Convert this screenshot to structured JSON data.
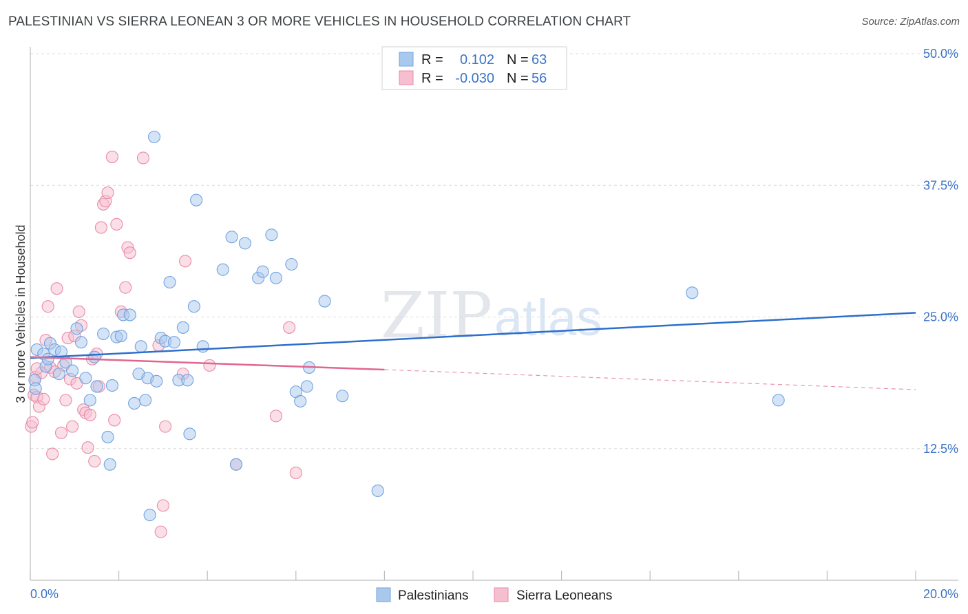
{
  "header": {
    "title": "PALESTINIAN VS SIERRA LEONEAN 3 OR MORE VEHICLES IN HOUSEHOLD CORRELATION CHART",
    "source": "Source: ZipAtlas.com"
  },
  "watermark": {
    "part1": "ZIP",
    "part2": "atlas"
  },
  "colors": {
    "blue": "#6fa3e0",
    "blue_fill": "#a9c8ee",
    "blue_line": "#2d6fcc",
    "pink": "#e98aa8",
    "pink_fill": "#f5bfd0",
    "pink_line": "#e06690"
  },
  "stats": {
    "r_label": "R =",
    "n_label": "N =",
    "series": [
      {
        "r": "0.102",
        "n": "63"
      },
      {
        "r": "-0.030",
        "n": "56"
      }
    ]
  },
  "chart_data": {
    "type": "scatter",
    "title": "PALESTINIAN VS SIERRA LEONEAN 3 OR MORE VEHICLES IN HOUSEHOLD CORRELATION CHART",
    "xlabel": "",
    "ylabel": "3 or more Vehicles in Household",
    "xlim": [
      0,
      20
    ],
    "ylim": [
      0,
      50
    ],
    "x_tick_labels": [
      "0.0%",
      "20.0%"
    ],
    "y_ticks": [
      12.5,
      25.0,
      37.5,
      50.0
    ],
    "y_tick_labels": [
      "12.5%",
      "25.0%",
      "37.5%",
      "50.0%"
    ],
    "legend": [
      "Palestinians",
      "Sierra Leoneans"
    ],
    "series": [
      {
        "name": "Palestinians",
        "trend": {
          "x": [
            0,
            20
          ],
          "y": [
            21.1,
            25.4
          ]
        },
        "points": [
          [
            0.1,
            19.0
          ],
          [
            0.12,
            18.2
          ],
          [
            0.15,
            21.9
          ],
          [
            0.3,
            21.5
          ],
          [
            0.35,
            20.3
          ],
          [
            0.4,
            21.0
          ],
          [
            0.45,
            22.5
          ],
          [
            0.55,
            21.9
          ],
          [
            0.65,
            19.6
          ],
          [
            0.7,
            21.7
          ],
          [
            0.8,
            20.7
          ],
          [
            0.95,
            19.9
          ],
          [
            1.05,
            23.9
          ],
          [
            1.15,
            22.6
          ],
          [
            1.25,
            19.2
          ],
          [
            1.35,
            17.1
          ],
          [
            1.45,
            21.2
          ],
          [
            1.5,
            18.4
          ],
          [
            1.65,
            23.4
          ],
          [
            1.75,
            13.6
          ],
          [
            1.8,
            11.0
          ],
          [
            1.85,
            18.5
          ],
          [
            1.95,
            23.1
          ],
          [
            2.05,
            23.2
          ],
          [
            2.1,
            25.2
          ],
          [
            2.25,
            25.2
          ],
          [
            2.35,
            16.8
          ],
          [
            2.45,
            19.6
          ],
          [
            2.5,
            22.2
          ],
          [
            2.6,
            17.1
          ],
          [
            2.65,
            19.2
          ],
          [
            2.7,
            6.2
          ],
          [
            2.8,
            42.1
          ],
          [
            2.85,
            18.9
          ],
          [
            2.95,
            23.0
          ],
          [
            3.05,
            22.7
          ],
          [
            3.15,
            28.3
          ],
          [
            3.25,
            22.6
          ],
          [
            3.35,
            19.0
          ],
          [
            3.45,
            24.0
          ],
          [
            3.55,
            19.0
          ],
          [
            3.6,
            13.9
          ],
          [
            3.7,
            26.0
          ],
          [
            3.75,
            36.1
          ],
          [
            3.9,
            22.2
          ],
          [
            4.35,
            29.5
          ],
          [
            4.55,
            32.6
          ],
          [
            4.65,
            11.0
          ],
          [
            4.85,
            32.0
          ],
          [
            5.15,
            28.7
          ],
          [
            5.25,
            29.3
          ],
          [
            5.45,
            32.8
          ],
          [
            5.55,
            28.7
          ],
          [
            5.9,
            30.0
          ],
          [
            6.0,
            17.9
          ],
          [
            6.1,
            17.0
          ],
          [
            6.25,
            18.4
          ],
          [
            6.3,
            20.2
          ],
          [
            6.65,
            26.5
          ],
          [
            7.05,
            17.5
          ],
          [
            7.85,
            8.5
          ],
          [
            14.95,
            27.3
          ],
          [
            16.9,
            17.1
          ]
        ]
      },
      {
        "name": "Sierra Leoneans",
        "trend": {
          "x": [
            0,
            8
          ],
          "y": [
            21.2,
            20.0
          ]
        },
        "trend_dashed": {
          "x": [
            8,
            20
          ],
          "y": [
            20.0,
            18.1
          ]
        },
        "points": [
          [
            0.02,
            14.6
          ],
          [
            0.05,
            15.0
          ],
          [
            0.08,
            17.6
          ],
          [
            0.12,
            19.3
          ],
          [
            0.15,
            17.4
          ],
          [
            0.2,
            16.5
          ],
          [
            0.25,
            19.7
          ],
          [
            0.3,
            17.2
          ],
          [
            0.35,
            22.8
          ],
          [
            0.4,
            26.0
          ],
          [
            0.45,
            20.2
          ],
          [
            0.5,
            12.0
          ],
          [
            0.55,
            19.8
          ],
          [
            0.6,
            27.7
          ],
          [
            0.7,
            14.0
          ],
          [
            0.75,
            20.4
          ],
          [
            0.8,
            17.1
          ],
          [
            0.85,
            23.0
          ],
          [
            0.9,
            19.1
          ],
          [
            0.95,
            14.6
          ],
          [
            1.0,
            23.2
          ],
          [
            1.05,
            18.7
          ],
          [
            1.1,
            25.5
          ],
          [
            1.15,
            24.2
          ],
          [
            1.2,
            16.2
          ],
          [
            1.25,
            15.9
          ],
          [
            1.3,
            12.6
          ],
          [
            1.35,
            15.7
          ],
          [
            1.4,
            21.0
          ],
          [
            1.45,
            11.3
          ],
          [
            1.5,
            21.5
          ],
          [
            1.55,
            18.4
          ],
          [
            1.6,
            33.5
          ],
          [
            1.65,
            35.7
          ],
          [
            1.7,
            36.0
          ],
          [
            1.75,
            36.8
          ],
          [
            1.85,
            40.2
          ],
          [
            1.9,
            15.2
          ],
          [
            1.95,
            33.8
          ],
          [
            2.05,
            25.5
          ],
          [
            2.15,
            27.8
          ],
          [
            2.2,
            31.6
          ],
          [
            2.25,
            31.1
          ],
          [
            2.55,
            40.1
          ],
          [
            2.9,
            22.3
          ],
          [
            2.95,
            4.6
          ],
          [
            3.0,
            7.1
          ],
          [
            3.05,
            14.6
          ],
          [
            3.45,
            19.6
          ],
          [
            3.5,
            30.3
          ],
          [
            4.05,
            20.4
          ],
          [
            4.65,
            11.0
          ],
          [
            5.55,
            15.6
          ],
          [
            5.85,
            24.0
          ],
          [
            6.0,
            10.2
          ],
          [
            0.15,
            20.1
          ]
        ]
      }
    ]
  }
}
